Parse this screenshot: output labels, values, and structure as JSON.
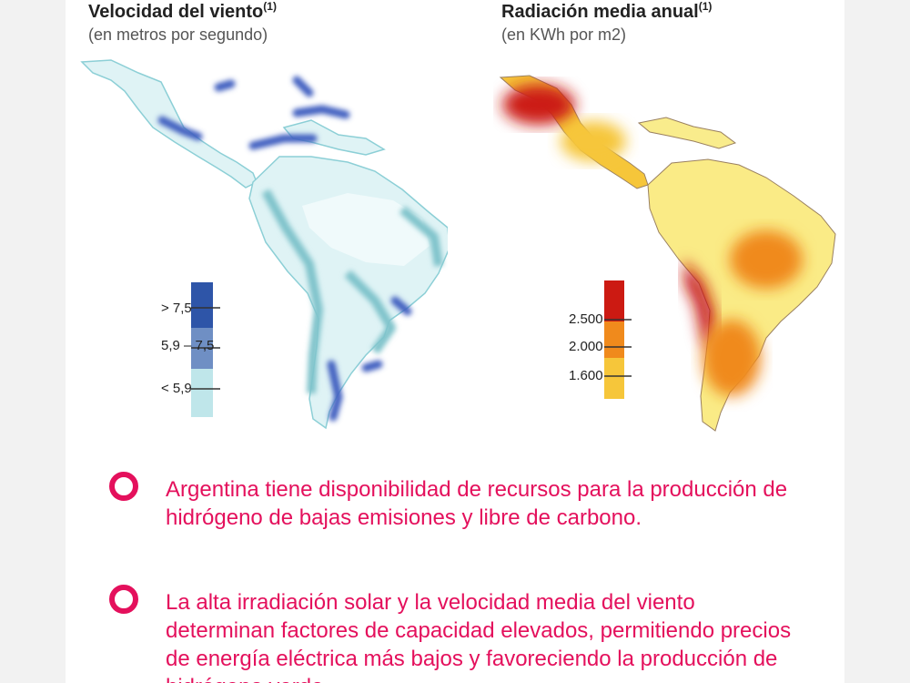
{
  "wind_map": {
    "title": "Velocidad del viento",
    "title_note": "(1)",
    "subtitle": "(en metros por segundo)",
    "legend": [
      {
        "label": "> 7,5",
        "color": "#2e55a8"
      },
      {
        "label": "5,9 – 7,5",
        "color": "#6f8fc4"
      },
      {
        "label": "< 5,9",
        "color": "#bfe6ea"
      }
    ]
  },
  "solar_map": {
    "title": "Radiación media anual",
    "title_note": "(1)",
    "subtitle": "(en KWh por m2)",
    "legend": [
      {
        "label": "2.500",
        "color": "#cc1a12"
      },
      {
        "label": "2.000",
        "color": "#f08a1c"
      },
      {
        "label": "1.600",
        "color": "#f6c63a"
      }
    ]
  },
  "bullets": [
    {
      "text": "Argentina tiene disponibilidad de recursos para la producción de hidrógeno de bajas emisiones y libre de carbono."
    },
    {
      "text": "La alta irradiación solar y la velocidad media del viento determinan factores de capacidad elevados, permitiendo precios de energía eléctrica más bajos y favoreciendo la producción de hidrógeno verde."
    }
  ],
  "colors": {
    "accent": "#e4105c"
  }
}
